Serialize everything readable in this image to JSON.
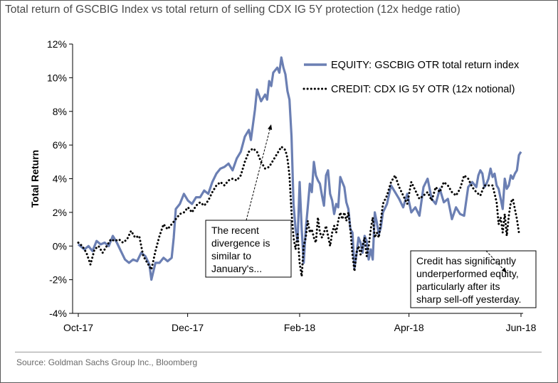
{
  "chart_data": {
    "type": "line",
    "title": "Total return of GSCBIG Index vs total return of selling CDX IG 5Y protection (12x hedge ratio)",
    "xlabel": "",
    "ylabel": "Total Return",
    "x_ticks": [
      {
        "label": "Oct-17",
        "index": 0
      },
      {
        "label": "Dec-17",
        "index": 41
      },
      {
        "label": "Feb-18",
        "index": 83
      },
      {
        "label": "Apr-18",
        "index": 124
      },
      {
        "label": "Jun-18",
        "index": 166
      }
    ],
    "ylim": [
      -4,
      12
    ],
    "y_ticks": [
      "-4%",
      "-2%",
      "0%",
      "2%",
      "4%",
      "6%",
      "8%",
      "10%",
      "12%"
    ],
    "y_tick_values": [
      -4,
      -2,
      0,
      2,
      4,
      6,
      8,
      10,
      12
    ],
    "n_points": 171,
    "series": [
      {
        "name": "EQUITY: GSCBIG OTR total return index",
        "style": "solid",
        "color": "#6b7fb3",
        "points": [
          [
            0,
            0.1
          ],
          [
            3,
            -0.2
          ],
          [
            5,
            0
          ],
          [
            7,
            -0.3
          ],
          [
            9,
            0.3
          ],
          [
            11,
            0.1
          ],
          [
            13,
            0.2
          ],
          [
            15,
            0
          ],
          [
            17,
            0.6
          ],
          [
            19,
            0.2
          ],
          [
            21,
            -0.3
          ],
          [
            23,
            -0.8
          ],
          [
            25,
            -1.0
          ],
          [
            27,
            -0.8
          ],
          [
            29,
            -0.9
          ],
          [
            31,
            -0.4
          ],
          [
            33,
            -0.6
          ],
          [
            35,
            -1.1
          ],
          [
            36,
            -2.0
          ],
          [
            38,
            -1.0
          ],
          [
            40,
            -1.0
          ],
          [
            42,
            -0.7
          ],
          [
            44,
            -0.9
          ],
          [
            46,
            -0.7
          ],
          [
            47,
            0.5
          ],
          [
            48,
            2.2
          ],
          [
            50,
            2.5
          ],
          [
            52,
            3.1
          ],
          [
            54,
            2.7
          ],
          [
            56,
            2.5
          ],
          [
            58,
            2.9
          ],
          [
            60,
            2.9
          ],
          [
            62,
            3.3
          ],
          [
            64,
            3.1
          ],
          [
            66,
            3.8
          ],
          [
            68,
            4.3
          ],
          [
            70,
            4.6
          ],
          [
            72,
            4.7
          ],
          [
            74,
            4.9
          ],
          [
            76,
            4.5
          ],
          [
            78,
            5.2
          ],
          [
            80,
            5.6
          ],
          [
            82,
            6.5
          ],
          [
            84,
            6.9
          ],
          [
            85,
            6.3
          ],
          [
            87,
            8.1
          ],
          [
            88,
            9.3
          ],
          [
            90,
            8.6
          ],
          [
            92,
            9.0
          ],
          [
            93,
            8.7
          ],
          [
            94,
            9.8
          ],
          [
            95,
            9.5
          ],
          [
            96,
            10.3
          ],
          [
            98,
            10.6
          ],
          [
            99,
            10.3
          ],
          [
            100,
            11.2
          ],
          [
            101,
            10.6
          ],
          [
            102,
            10.2
          ],
          [
            103,
            9.2
          ],
          [
            104,
            8.7
          ],
          [
            105,
            6.5
          ],
          [
            106,
            2.5
          ],
          [
            107,
            1.0
          ],
          [
            108,
            0.3
          ],
          [
            109,
            3.8
          ],
          [
            110,
            1.0
          ],
          [
            111,
            -1.0
          ],
          [
            112,
            1.0
          ],
          [
            113,
            2.3
          ],
          [
            114,
            3.7
          ],
          [
            115,
            3.2
          ],
          [
            116,
            5.0
          ],
          [
            117,
            4.2
          ],
          [
            118,
            3.9
          ],
          [
            119,
            3.7
          ],
          [
            120,
            3.0
          ],
          [
            121,
            2.4
          ],
          [
            122,
            4.2
          ],
          [
            123,
            4.5
          ],
          [
            124,
            3.1
          ],
          [
            125,
            2.7
          ],
          [
            126,
            1.9
          ],
          [
            127,
            2.5
          ],
          [
            128,
            2.3
          ],
          [
            129,
            4.1
          ],
          [
            130,
            3.8
          ],
          [
            131,
            3.5
          ],
          [
            132,
            2.6
          ],
          [
            133,
            2.2
          ],
          [
            134,
            1.0
          ],
          [
            135,
            0.8
          ],
          [
            136,
            -1.3
          ],
          [
            137,
            -0.5
          ],
          [
            138,
            0.5
          ],
          [
            139,
            0.2
          ],
          [
            140,
            -0.4
          ],
          [
            141,
            0.6
          ],
          [
            142,
            0.3
          ],
          [
            143,
            -0.8
          ],
          [
            144,
            -0.2
          ],
          [
            145,
            -0.8
          ],
          [
            146,
            2.0
          ],
          [
            147,
            1.4
          ],
          [
            148,
            0.7
          ],
          [
            149,
            1.1
          ],
          [
            150,
            2.0
          ],
          [
            152,
            2.5
          ],
          [
            154,
            3.6
          ],
          [
            156,
            3.2
          ],
          [
            158,
            2.8
          ],
          [
            160,
            2.3
          ],
          [
            162,
            3.1
          ],
          [
            164,
            2.0
          ],
          [
            166,
            2.3
          ],
          [
            168,
            1.8
          ],
          [
            170,
            3.5
          ],
          [
            172,
            4.0
          ],
          [
            174,
            2.8
          ],
          [
            176,
            2.5
          ],
          [
            178,
            3.4
          ],
          [
            180,
            2.6
          ],
          [
            182,
            2.8
          ],
          [
            184,
            1.6
          ],
          [
            186,
            2.3
          ],
          [
            188,
            1.9
          ],
          [
            190,
            1.8
          ],
          [
            192,
            3.5
          ],
          [
            194,
            3.8
          ],
          [
            196,
            3.5
          ],
          [
            197,
            4.2
          ],
          [
            198,
            4.5
          ],
          [
            199,
            4.3
          ],
          [
            200,
            3.5
          ],
          [
            201,
            3.7
          ],
          [
            202,
            4.0
          ],
          [
            203,
            4.6
          ],
          [
            204,
            4.1
          ],
          [
            205,
            4.3
          ],
          [
            206,
            3.6
          ],
          [
            207,
            3.4
          ],
          [
            208,
            2.8
          ],
          [
            209,
            2.2
          ],
          [
            210,
            4.0
          ],
          [
            211,
            3.4
          ],
          [
            212,
            3.6
          ],
          [
            213,
            4.2
          ],
          [
            214,
            4.0
          ],
          [
            215,
            4.3
          ],
          [
            216,
            4.5
          ],
          [
            217,
            5.4
          ],
          [
            218,
            5.6
          ]
        ]
      },
      {
        "name": "CREDIT: CDX IG 5Y OTR (12x notional)",
        "style": "dotted",
        "color": "#000000",
        "points": [
          [
            0,
            0.2
          ],
          [
            2,
            0
          ],
          [
            4,
            -0.4
          ],
          [
            6,
            -1.1
          ],
          [
            8,
            -0.2
          ],
          [
            10,
            0
          ],
          [
            12,
            -0.4
          ],
          [
            14,
            0
          ],
          [
            16,
            0.4
          ],
          [
            18,
            0.3
          ],
          [
            20,
            0.4
          ],
          [
            22,
            0.2
          ],
          [
            24,
            0.4
          ],
          [
            26,
            0.9
          ],
          [
            28,
            0.5
          ],
          [
            30,
            0.6
          ],
          [
            32,
            -0.6
          ],
          [
            34,
            -1.0
          ],
          [
            36,
            -1.4
          ],
          [
            38,
            -0.3
          ],
          [
            40,
            0.6
          ],
          [
            42,
            1.3
          ],
          [
            44,
            1.0
          ],
          [
            46,
            1.3
          ],
          [
            48,
            1.6
          ],
          [
            50,
            1.9
          ],
          [
            52,
            2.0
          ],
          [
            54,
            2.3
          ],
          [
            56,
            2.0
          ],
          [
            58,
            2.4
          ],
          [
            60,
            2.6
          ],
          [
            62,
            2.4
          ],
          [
            64,
            2.7
          ],
          [
            66,
            3.2
          ],
          [
            68,
            3.6
          ],
          [
            70,
            3.8
          ],
          [
            72,
            3.6
          ],
          [
            74,
            3.9
          ],
          [
            76,
            4.0
          ],
          [
            78,
            3.9
          ],
          [
            80,
            4.2
          ],
          [
            82,
            5.0
          ],
          [
            84,
            5.6
          ],
          [
            86,
            5.8
          ],
          [
            88,
            5.6
          ],
          [
            90,
            5.0
          ],
          [
            92,
            4.6
          ],
          [
            94,
            4.7
          ],
          [
            96,
            5.1
          ],
          [
            98,
            5.5
          ],
          [
            100,
            5.9
          ],
          [
            102,
            5.7
          ],
          [
            103,
            5.2
          ],
          [
            104,
            4.2
          ],
          [
            105,
            2.0
          ],
          [
            106,
            0.5
          ],
          [
            107,
            -0.2
          ],
          [
            108,
            0.7
          ],
          [
            109,
            -1.0
          ],
          [
            110,
            -1.8
          ],
          [
            111,
            0
          ],
          [
            112,
            0.5
          ],
          [
            113,
            1.5
          ],
          [
            114,
            0.8
          ],
          [
            115,
            1.0
          ],
          [
            116,
            0.5
          ],
          [
            117,
            0.2
          ],
          [
            118,
            1.7
          ],
          [
            119,
            0.8
          ],
          [
            120,
            0.5
          ],
          [
            121,
            0.8
          ],
          [
            122,
            1.2
          ],
          [
            123,
            0.6
          ],
          [
            124,
            0
          ],
          [
            125,
            0.8
          ],
          [
            126,
            1.2
          ],
          [
            127,
            0.8
          ],
          [
            128,
            1.5
          ],
          [
            129,
            2.0
          ],
          [
            130,
            1.6
          ],
          [
            131,
            2.0
          ],
          [
            132,
            1.5
          ],
          [
            133,
            2.0
          ],
          [
            134,
            1.0
          ],
          [
            135,
            -0.5
          ],
          [
            136,
            -1.5
          ],
          [
            137,
            -0.4
          ],
          [
            138,
            0
          ],
          [
            139,
            -0.5
          ],
          [
            140,
            0
          ],
          [
            141,
            0.5
          ],
          [
            142,
            -0.6
          ],
          [
            143,
            0
          ],
          [
            144,
            1.0
          ],
          [
            145,
            1.7
          ],
          [
            146,
            0.5
          ],
          [
            147,
            0.8
          ],
          [
            148,
            0.5
          ],
          [
            149,
            1.5
          ],
          [
            150,
            2.5
          ],
          [
            152,
            3.0
          ],
          [
            154,
            3.8
          ],
          [
            156,
            4.2
          ],
          [
            158,
            3.5
          ],
          [
            160,
            3.0
          ],
          [
            162,
            2.5
          ],
          [
            164,
            3.8
          ],
          [
            166,
            3.3
          ],
          [
            168,
            2.8
          ],
          [
            170,
            3.0
          ],
          [
            172,
            3.2
          ],
          [
            174,
            2.7
          ],
          [
            176,
            3.5
          ],
          [
            178,
            3.2
          ],
          [
            180,
            3.8
          ],
          [
            182,
            3.6
          ],
          [
            184,
            3.2
          ],
          [
            186,
            3.0
          ],
          [
            188,
            3.4
          ],
          [
            190,
            4.2
          ],
          [
            192,
            4.0
          ],
          [
            194,
            3.5
          ],
          [
            196,
            3.2
          ],
          [
            198,
            3.0
          ],
          [
            200,
            3.6
          ],
          [
            202,
            3.6
          ],
          [
            204,
            3.6
          ],
          [
            206,
            2.6
          ],
          [
            207,
            1.3
          ],
          [
            208,
            1.7
          ],
          [
            209,
            0.8
          ],
          [
            210,
            1.9
          ],
          [
            211,
            0.6
          ],
          [
            212,
            1.8
          ],
          [
            213,
            2.6
          ],
          [
            214,
            2.8
          ],
          [
            215,
            2.2
          ],
          [
            216,
            1.6
          ],
          [
            217,
            0.8
          ],
          [
            218,
            0.9
          ]
        ]
      }
    ],
    "legend": {
      "placement": "top-right",
      "entries": [
        "EQUITY: GSCBIG OTR total return index",
        "CREDIT: CDX IG 5Y OTR (12x notional)"
      ]
    },
    "annotations": [
      {
        "name": "divergence-note",
        "lines": [
          "The recent",
          "divergence is",
          "similar to",
          "January's..."
        ]
      },
      {
        "name": "underperformance-note",
        "lines": [
          "Credit has significantly",
          "underperformed equity,",
          "particularly after its",
          "sharp sell-off yesterday."
        ]
      }
    ],
    "grid": false
  },
  "source": "Source: Goldman Sachs Group Inc., Bloomberg"
}
